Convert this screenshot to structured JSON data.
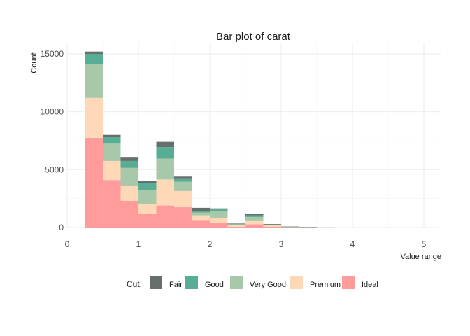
{
  "chart_data": {
    "type": "bar",
    "stacked": true,
    "title": "Bar plot of carat",
    "xlabel": "Value range",
    "ylabel": "Count",
    "xlim": [
      0,
      5.25
    ],
    "ylim": [
      -500,
      16000
    ],
    "x_ticks": [
      "0",
      "1",
      "2",
      "3",
      "4",
      "5"
    ],
    "y_ticks": [
      "0",
      "5000",
      "10000",
      "15000"
    ],
    "grid": true,
    "legend_position": "bottom",
    "legend_title": "Cut:",
    "bin_width": 0.25,
    "bin_starts": [
      0.25,
      0.5,
      0.75,
      1.0,
      1.25,
      1.5,
      1.75,
      2.0,
      2.25,
      2.5,
      2.75,
      3.0,
      3.25,
      3.5,
      3.75,
      4.0,
      4.25,
      4.5,
      4.75,
      5.0
    ],
    "series": [
      {
        "name": "Ideal",
        "color": "#ff9b9b",
        "values": [
          7750,
          4100,
          2300,
          1150,
          1900,
          1750,
          650,
          400,
          60,
          280,
          80,
          25,
          10,
          5,
          0,
          0,
          0,
          0,
          0,
          0
        ]
      },
      {
        "name": "Premium",
        "color": "#ffd8b8",
        "values": [
          3450,
          1650,
          1300,
          900,
          2250,
          1400,
          400,
          450,
          130,
          330,
          100,
          25,
          10,
          5,
          0,
          0,
          0,
          0,
          0,
          0
        ]
      },
      {
        "name": "Very Good",
        "color": "#a8c8aa",
        "values": [
          2900,
          1550,
          1550,
          1200,
          1800,
          800,
          250,
          600,
          80,
          300,
          60,
          15,
          5,
          5,
          0,
          0,
          0,
          0,
          0,
          0
        ]
      },
      {
        "name": "Good",
        "color": "#58ae94",
        "values": [
          900,
          500,
          600,
          600,
          1000,
          300,
          100,
          150,
          30,
          150,
          40,
          10,
          5,
          0,
          0,
          0,
          0,
          0,
          0,
          0
        ]
      },
      {
        "name": "Fair",
        "color": "#676e6e",
        "values": [
          200,
          200,
          350,
          200,
          450,
          150,
          300,
          50,
          40,
          150,
          20,
          10,
          5,
          0,
          0,
          0,
          0,
          0,
          0,
          0
        ]
      }
    ],
    "legend_order": [
      "Fair",
      "Good",
      "Very Good",
      "Premium",
      "Ideal"
    ]
  }
}
